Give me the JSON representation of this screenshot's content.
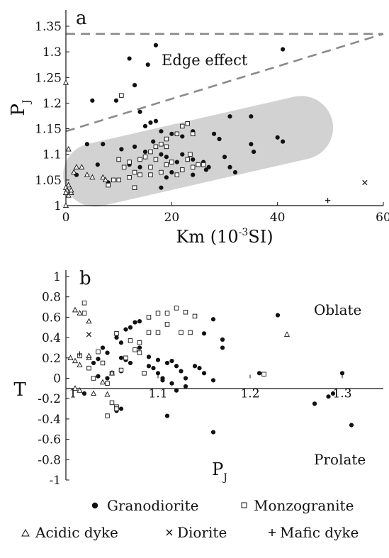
{
  "chart_data": [
    {
      "type": "scatter",
      "panel_label": "a",
      "xlabel_main": "Km (10",
      "xlabel_sup": "-3",
      "xlabel_tail": "SI)",
      "ylabel_main": "P",
      "ylabel_sub": "J",
      "xlim": [
        0,
        60
      ],
      "ylim": [
        1,
        1.35
      ],
      "x_ticks": [
        0,
        20,
        40,
        60
      ],
      "y_ticks": [
        1,
        1.05,
        1.1,
        1.15,
        1.2,
        1.25,
        1.3,
        1.35
      ],
      "x_tick_labels": [
        "0",
        "20",
        "40",
        "60"
      ],
      "y_tick_labels": [
        "1",
        "1.05",
        "1.1",
        "1.15",
        "1.2",
        "1.25",
        "1.3",
        "1.35"
      ],
      "annotations": [
        {
          "text": "Edge effect",
          "x": 35,
          "y": 1.255
        }
      ],
      "dashed_lines": [
        {
          "from": [
            0,
            1.335
          ],
          "to": [
            60,
            1.335
          ]
        },
        {
          "from": [
            0,
            1.145
          ],
          "to": [
            60,
            1.335
          ]
        }
      ],
      "shaded_region": {
        "from": [
          5.5,
          1.06
        ],
        "to": [
          44.5,
          1.152
        ],
        "half_width": 0.062
      },
      "series": [
        {
          "name": "Granodiorite",
          "marker": "filled-circle",
          "points": [
            [
              17,
              1.313
            ],
            [
              12,
              1.287
            ],
            [
              15.5,
              1.275
            ],
            [
              41,
              1.305
            ],
            [
              9.5,
              1.205
            ],
            [
              5,
              1.205
            ],
            [
              13,
              1.235
            ],
            [
              14,
              1.183
            ],
            [
              16,
              1.162
            ],
            [
              17,
              1.165
            ],
            [
              15,
              1.155
            ],
            [
              31,
              1.174
            ],
            [
              35,
              1.174
            ],
            [
              18,
              1.145
            ],
            [
              20,
              1.14
            ],
            [
              22,
              1.135
            ],
            [
              24,
              1.145
            ],
            [
              28,
              1.14
            ],
            [
              29,
              1.13
            ],
            [
              40,
              1.133
            ],
            [
              41,
              1.125
            ],
            [
              35,
              1.12
            ],
            [
              4,
              1.12
            ],
            [
              7,
              1.12
            ],
            [
              13,
              1.115
            ],
            [
              15,
              1.105
            ],
            [
              10.5,
              1.11
            ],
            [
              17,
              1.115
            ],
            [
              18,
              1.1
            ],
            [
              19,
              1.095
            ],
            [
              21,
              1.085
            ],
            [
              23,
              1.09
            ],
            [
              24,
              1.09
            ],
            [
              26,
              1.085
            ],
            [
              27,
              1.075
            ],
            [
              25,
              1.08
            ],
            [
              30,
              1.095
            ],
            [
              35.5,
              1.105
            ],
            [
              31,
              1.075
            ],
            [
              32,
              1.065
            ],
            [
              6,
              1.08
            ],
            [
              12,
              1.08
            ],
            [
              14,
              1.075
            ],
            [
              19,
              1.055
            ],
            [
              20,
              1.065
            ],
            [
              24,
              1.06
            ],
            [
              8,
              1.045
            ],
            [
              18,
              1.035
            ],
            [
              2,
              1.06
            ],
            [
              16.5,
              1.125
            ],
            [
              22,
              1.1
            ],
            [
              26.5,
              1.07
            ]
          ]
        },
        {
          "name": "Monzogranite",
          "marker": "open-square",
          "points": [
            [
              10.5,
              1.215
            ],
            [
              22,
              1.155
            ],
            [
              23,
              1.16
            ],
            [
              21,
              1.14
            ],
            [
              19,
              1.13
            ],
            [
              18,
              1.12
            ],
            [
              17,
              1.115
            ],
            [
              16,
              1.105
            ],
            [
              15,
              1.095
            ],
            [
              14,
              1.09
            ],
            [
              12,
              1.085
            ],
            [
              10,
              1.09
            ],
            [
              11,
              1.075
            ],
            [
              13,
              1.065
            ],
            [
              14,
              1.06
            ],
            [
              16,
              1.06
            ],
            [
              19,
              1.08
            ],
            [
              20,
              1.085
            ],
            [
              22,
              1.07
            ],
            [
              23,
              1.09
            ],
            [
              24,
              1.075
            ],
            [
              25,
              1.08
            ],
            [
              26,
              1.08
            ],
            [
              21,
              1.06
            ],
            [
              9,
              1.05
            ],
            [
              8,
              1.04
            ],
            [
              13,
              1.035
            ],
            [
              10,
              1.05
            ],
            [
              12,
              1.055
            ],
            [
              16,
              1.075
            ],
            [
              18,
              1.065
            ],
            [
              17,
              1.09
            ],
            [
              24,
              1.14
            ],
            [
              23.5,
              1.1
            ],
            [
              19,
              1.115
            ]
          ]
        },
        {
          "name": "Acidic dyke",
          "marker": "open-triangle",
          "points": [
            [
              0,
              1.24
            ],
            [
              0.5,
              1.11
            ],
            [
              0.5,
              1.04
            ],
            [
              0,
              1.035
            ],
            [
              0.2,
              1.03
            ],
            [
              1,
              1.025
            ],
            [
              0.5,
              1.02
            ],
            [
              1.5,
              1.065
            ],
            [
              2,
              1.075
            ],
            [
              3,
              1.075
            ],
            [
              4,
              1.06
            ],
            [
              5,
              1.055
            ],
            [
              7,
              1.055
            ],
            [
              7.5,
              1.05
            ],
            [
              1,
              1.03
            ],
            [
              0,
              1.025
            ],
            [
              0,
              1.0
            ]
          ]
        },
        {
          "name": "Diorite",
          "marker": "cross",
          "points": [
            [
              56.5,
              1.045
            ]
          ]
        },
        {
          "name": "Mafic dyke",
          "marker": "plus",
          "points": [
            [
              49.5,
              1.01
            ]
          ]
        }
      ]
    },
    {
      "type": "scatter",
      "panel_label": "b",
      "xlabel_main": "P",
      "xlabel_sub": "J",
      "ylabel_main": "T",
      "xlim": [
        1,
        1.35
      ],
      "ylim": [
        -1,
        1
      ],
      "x_ticks": [
        1,
        1.1,
        1.2,
        1.3
      ],
      "y_ticks": [
        1,
        0.8,
        0.6,
        0.4,
        0.2,
        0,
        -0.2,
        -0.4,
        -0.6,
        -0.8,
        -1
      ],
      "x_tick_labels": [
        "1",
        "1.1",
        "1.2",
        "1.3"
      ],
      "y_tick_labels": [
        "1",
        "0.8",
        "0.6",
        "0.4",
        "0.2",
        "0",
        "-0.2",
        "-0.4",
        "-0.6",
        "-0.8",
        "-1"
      ],
      "annotations": [
        {
          "text": "Oblate",
          "x": 1.285,
          "y": 0.64
        },
        {
          "text": "Prolate",
          "x": 1.285,
          "y": -0.6
        }
      ],
      "series": [
        {
          "name": "Granodiorite",
          "marker": "filled-circle",
          "points": [
            [
              1.075,
              0.55
            ],
            [
              1.08,
              0.56
            ],
            [
              1.07,
              0.5
            ],
            [
              1.065,
              0.48
            ],
            [
              1.06,
              0.35
            ],
            [
              1.055,
              0.4
            ],
            [
              1.04,
              0.3
            ],
            [
              1.035,
              0.19
            ],
            [
              1.03,
              0.15
            ],
            [
              1.02,
              -0.15
            ],
            [
              1.045,
              0.25
            ],
            [
              1.06,
              0.2
            ],
            [
              1.065,
              0.18
            ],
            [
              1.07,
              0.15
            ],
            [
              1.09,
              0.21
            ],
            [
              1.1,
              0.18
            ],
            [
              1.11,
              0.15
            ],
            [
              1.115,
              0.17
            ],
            [
              1.12,
              0.12
            ],
            [
              1.125,
              0.07
            ],
            [
              1.1,
              0.05
            ],
            [
              1.095,
              0.1
            ],
            [
              1.105,
              0.0
            ],
            [
              1.115,
              -0.05
            ],
            [
              1.13,
              0.0
            ],
            [
              1.14,
              0.12
            ],
            [
              1.145,
              0.1
            ],
            [
              1.15,
              0.44
            ],
            [
              1.16,
              0.58
            ],
            [
              1.17,
              0.38
            ],
            [
              1.17,
              0.3
            ],
            [
              1.15,
              0.05
            ],
            [
              1.16,
              -0.02
            ],
            [
              1.13,
              -0.08
            ],
            [
              1.12,
              -0.12
            ],
            [
              1.105,
              -0.02
            ],
            [
              1.11,
              -0.37
            ],
            [
              1.06,
              -0.3
            ],
            [
              1.055,
              -0.32
            ],
            [
              1.16,
              -0.53
            ],
            [
              1.21,
              0.05
            ],
            [
              1.23,
              0.62
            ],
            [
              1.27,
              -0.25
            ],
            [
              1.285,
              -0.18
            ],
            [
              1.29,
              -0.15
            ],
            [
              1.3,
              0.05
            ],
            [
              1.31,
              -0.46
            ],
            [
              1.06,
              0.07
            ],
            [
              1.08,
              0.3
            ],
            [
              1.09,
              0.12
            ],
            [
              1.035,
              0.02
            ],
            [
              1.045,
              0.0
            ]
          ]
        },
        {
          "name": "Monzogranite",
          "marker": "open-square",
          "points": [
            [
              1.02,
              0.74
            ],
            [
              1.02,
              0.64
            ],
            [
              1.055,
              0.44
            ],
            [
              1.07,
              0.37
            ],
            [
              1.09,
              0.6
            ],
            [
              1.1,
              0.64
            ],
            [
              1.11,
              0.64
            ],
            [
              1.12,
              0.69
            ],
            [
              1.13,
              0.65
            ],
            [
              1.14,
              0.61
            ],
            [
              1.135,
              0.45
            ],
            [
              1.125,
              0.45
            ],
            [
              1.11,
              0.53
            ],
            [
              1.1,
              0.45
            ],
            [
              1.09,
              0.45
            ],
            [
              1.08,
              0.35
            ],
            [
              1.075,
              0.28
            ],
            [
              1.065,
              0.2
            ],
            [
              1.06,
              0.08
            ],
            [
              1.05,
              0.05
            ],
            [
              1.04,
              0.15
            ],
            [
              1.035,
              0.26
            ],
            [
              1.015,
              0.22
            ],
            [
              1.03,
              0.0
            ],
            [
              1.045,
              -0.05
            ],
            [
              1.05,
              -0.24
            ],
            [
              1.055,
              -0.28
            ],
            [
              1.055,
              -0.3
            ],
            [
              1.045,
              -0.37
            ],
            [
              1.08,
              0.25
            ],
            [
              1.215,
              0.04
            ],
            [
              1.085,
              0.05
            ],
            [
              1.025,
              0.1
            ]
          ]
        },
        {
          "name": "Acidic dyke",
          "marker": "open-triangle",
          "points": [
            [
              1.01,
              0.67
            ],
            [
              1.015,
              0.64
            ],
            [
              1.025,
              0.56
            ],
            [
              1.005,
              0.2
            ],
            [
              1.01,
              0.17
            ],
            [
              1.015,
              0.13
            ],
            [
              1.025,
              0.2
            ],
            [
              1.025,
              0.22
            ],
            [
              1.01,
              -0.1
            ],
            [
              1.015,
              -0.12
            ],
            [
              1.03,
              -0.15
            ],
            [
              1.04,
              -0.04
            ],
            [
              1.045,
              -0.16
            ],
            [
              1.05,
              0.05
            ],
            [
              1.24,
              0.43
            ]
          ]
        },
        {
          "name": "Diorite",
          "marker": "cross",
          "points": [
            [
              1.025,
              0.43
            ]
          ]
        },
        {
          "name": "Mafic dyke",
          "marker": "plus",
          "points": [
            [
              1.015,
              0.24
            ]
          ]
        }
      ]
    }
  ],
  "legend": {
    "placement": "bottom",
    "rows": [
      [
        {
          "label": "Granodiorite",
          "marker": "filled-circle"
        },
        {
          "label": "Monzogranite",
          "marker": "open-square"
        }
      ],
      [
        {
          "label": "Acidic dyke",
          "marker": "open-triangle"
        },
        {
          "label": "Diorite",
          "marker": "cross"
        },
        {
          "label": "Mafic dyke",
          "marker": "plus"
        }
      ]
    ]
  }
}
